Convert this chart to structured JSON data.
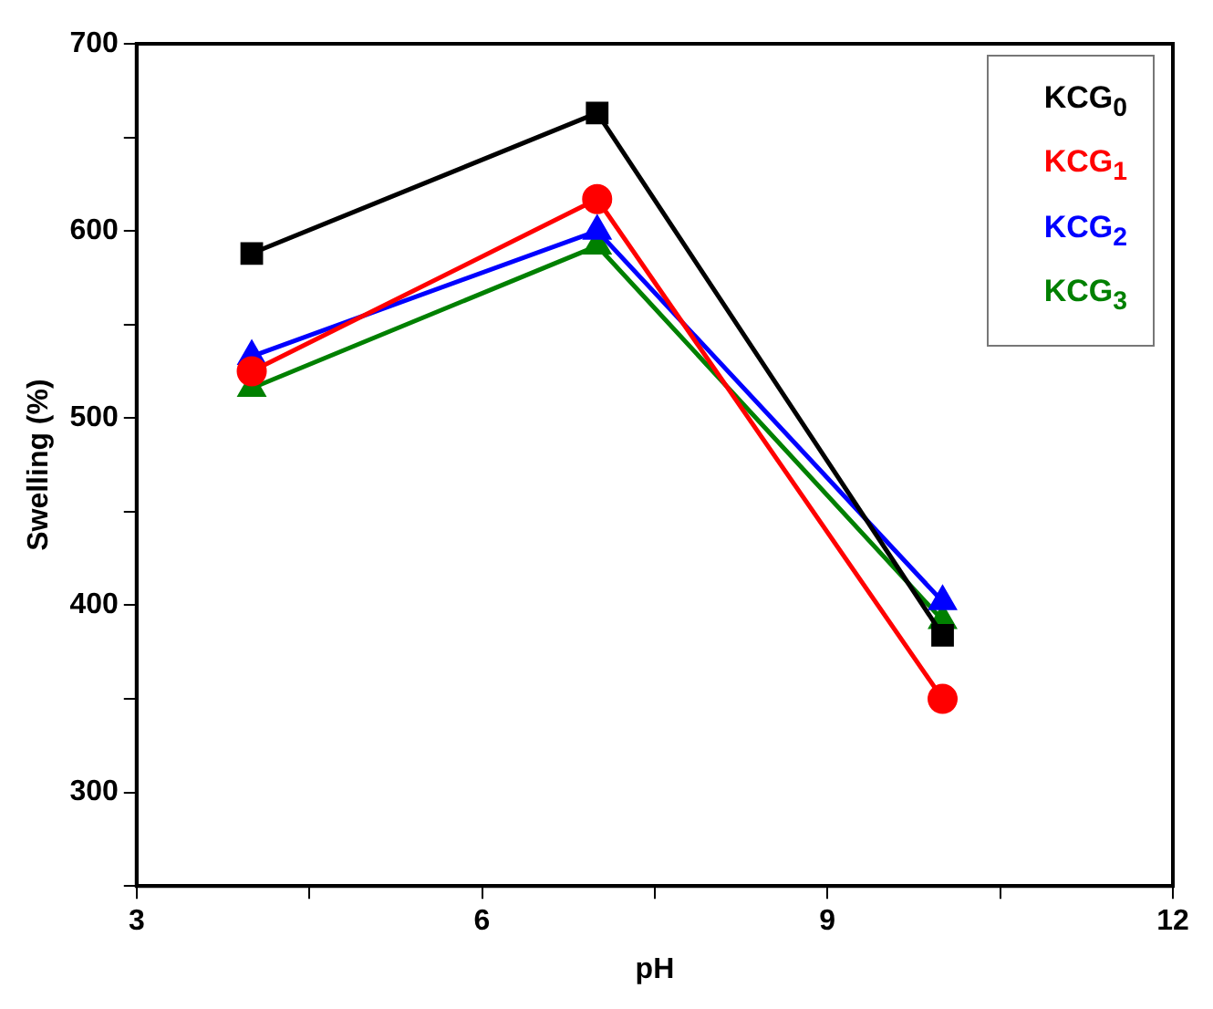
{
  "chart_data": {
    "type": "line",
    "xlabel": "pH",
    "ylabel": "Swelling (%)",
    "xlim": [
      3,
      12
    ],
    "xticks": [
      3,
      {
        "value": 4.5,
        "label": null
      },
      6,
      {
        "value": 7.5,
        "label": null
      },
      9,
      {
        "value": 10.5,
        "label": null
      },
      12
    ],
    "ylim": [
      250,
      700
    ],
    "yticks": [
      {
        "value": 250,
        "label": null
      },
      300,
      {
        "value": 350,
        "label": null
      },
      400,
      {
        "value": 450,
        "label": null
      },
      500,
      {
        "value": 550,
        "label": null
      },
      600,
      {
        "value": 650,
        "label": null
      },
      700
    ],
    "x": [
      4,
      7,
      10
    ],
    "series": [
      {
        "name": "KCG$_{0}$",
        "color": "#000000",
        "marker": "square",
        "values": [
          588,
          663,
          384
        ]
      },
      {
        "name": "KCG$_{1}$",
        "color": "#ff0000",
        "marker": "circle",
        "values": [
          525,
          617,
          350
        ]
      },
      {
        "name": "KCG$_{2}$",
        "color": "#0000ff",
        "marker": "triangle",
        "values": [
          533,
          600,
          402
        ]
      },
      {
        "name": "KCG$_{3}$",
        "color": "#008000",
        "marker": "triangle",
        "values": [
          516,
          592,
          392
        ]
      }
    ],
    "legend": "top right",
    "grid": false,
    "line_style": "solid"
  }
}
